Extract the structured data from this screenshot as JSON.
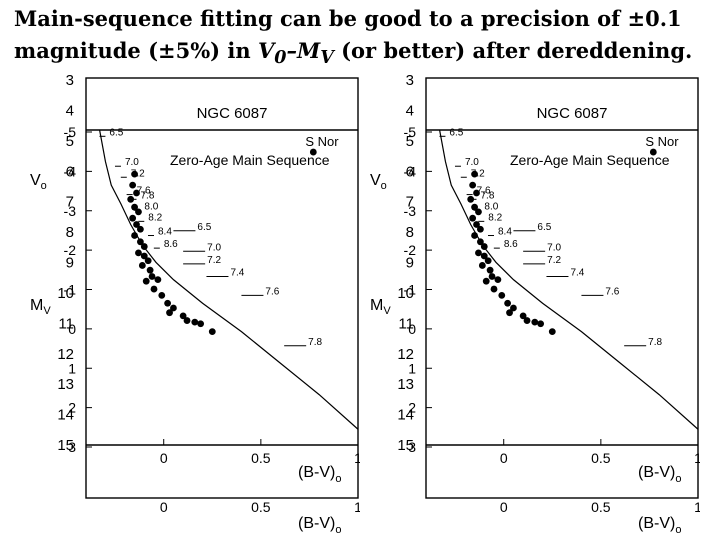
{
  "slide": {
    "title_line1": "Main-sequence fitting can be good to a precision of ±0.1",
    "title_line2_a": "magnitude (±5%) in ",
    "title_v": "V",
    "title_sub0": "0",
    "title_dash_m": "–M",
    "title_subv": "V",
    "title_line2_b": " (or better) after dereddening."
  },
  "chart_data": {
    "type": "scatter",
    "panels": [
      {
        "name": "left",
        "label": "NGC 6087",
        "curve_label": "Zero-Age Main Sequence",
        "star_label": "S Nor",
        "ylabel": "M",
        "ylabel_sub": "V",
        "ylabel2": "V",
        "ylabel2_sub": "o",
        "ylabel2_suffix": " – M",
        "ylabel2_sub2": "V",
        "xlabel": "(B-V)",
        "xlabel_sub": "o",
        "xlim": [
          -0.4,
          1.0
        ],
        "ylim": [
          -5,
          15
        ],
        "x_ticks": [
          "0",
          "0.5",
          "1"
        ],
        "y_ticks_left": [
          "3",
          "4",
          "5",
          "6",
          "7",
          "8",
          "9",
          "10",
          "11",
          "12",
          "13",
          "14",
          "15"
        ],
        "y_ticks_inner": [
          "-5",
          "-4",
          "-3",
          "-2",
          "-1",
          "0",
          "1",
          "2",
          "3"
        ],
        "mass_labels": [
          {
            "text": "6.5",
            "bv": -0.3,
            "mv": -4.6
          },
          {
            "text": "7.0",
            "bv": -0.22,
            "mv": -2.7
          },
          {
            "text": "7.2",
            "bv": -0.19,
            "mv": -2.0
          },
          {
            "text": "7.6",
            "bv": -0.16,
            "mv": -0.9
          },
          {
            "text": "7.8",
            "bv": -0.14,
            "mv": -0.6
          },
          {
            "text": "8.0",
            "bv": -0.12,
            "mv": 0.1
          },
          {
            "text": "8.2",
            "bv": -0.1,
            "mv": 0.8
          },
          {
            "text": "8.4",
            "bv": -0.05,
            "mv": 1.7
          },
          {
            "text": "8.6",
            "bv": -0.02,
            "mv": 2.5
          },
          {
            "text": "6.5",
            "bv": 0.05,
            "mv": 1.4
          },
          {
            "text": "7.0",
            "bv": 0.1,
            "mv": 2.7
          },
          {
            "text": "7.2",
            "bv": 0.1,
            "mv": 3.5
          },
          {
            "text": "7.4",
            "bv": 0.22,
            "mv": 4.3
          },
          {
            "text": "7.6",
            "bv": 0.4,
            "mv": 5.5
          },
          {
            "text": "7.8",
            "bv": 0.62,
            "mv": 8.7
          }
        ],
        "points": [
          {
            "bv": -0.15,
            "mv": -2.2
          },
          {
            "bv": -0.16,
            "mv": -1.5
          },
          {
            "bv": -0.14,
            "mv": -1.0
          },
          {
            "bv": -0.17,
            "mv": -0.6
          },
          {
            "bv": -0.15,
            "mv": -0.1
          },
          {
            "bv": -0.13,
            "mv": 0.2
          },
          {
            "bv": -0.16,
            "mv": 0.6
          },
          {
            "bv": -0.14,
            "mv": 1.0
          },
          {
            "bv": -0.12,
            "mv": 1.3
          },
          {
            "bv": -0.15,
            "mv": 1.7
          },
          {
            "bv": -0.12,
            "mv": 2.1
          },
          {
            "bv": -0.1,
            "mv": 2.4
          },
          {
            "bv": -0.13,
            "mv": 2.8
          },
          {
            "bv": -0.1,
            "mv": 3.0
          },
          {
            "bv": -0.08,
            "mv": 3.3
          },
          {
            "bv": -0.11,
            "mv": 3.6
          },
          {
            "bv": -0.07,
            "mv": 3.9
          },
          {
            "bv": -0.06,
            "mv": 4.3
          },
          {
            "bv": -0.03,
            "mv": 4.5
          },
          {
            "bv": -0.09,
            "mv": 4.6
          },
          {
            "bv": -0.05,
            "mv": 5.1
          },
          {
            "bv": -0.01,
            "mv": 5.5
          },
          {
            "bv": 0.02,
            "mv": 6.0
          },
          {
            "bv": 0.05,
            "mv": 6.3
          },
          {
            "bv": 0.03,
            "mv": 6.6
          },
          {
            "bv": 0.1,
            "mv": 6.8
          },
          {
            "bv": 0.12,
            "mv": 7.1
          },
          {
            "bv": 0.16,
            "mv": 7.2
          },
          {
            "bv": 0.19,
            "mv": 7.3
          },
          {
            "bv": 0.25,
            "mv": 7.8
          },
          {
            "bv": 0.77,
            "mv": -3.6
          }
        ]
      },
      {
        "name": "right",
        "label": "NGC 6087",
        "curve_label": "Zero-Age Main Sequence",
        "star_label": "S Nor",
        "ylabel": "M",
        "ylabel_sub": "V",
        "ylabel2": "V",
        "ylabel2_sub": "o",
        "ylabel2_suffix": " – M",
        "ylabel2_sub2": "V",
        "xlabel": "(B-V)",
        "xlabel_sub": "o",
        "xlim": [
          -0.4,
          1.0
        ],
        "ylim": [
          -5,
          15
        ],
        "x_ticks": [
          "0",
          "0.5",
          "1"
        ],
        "y_ticks_left": [
          "3",
          "4",
          "5",
          "6",
          "7",
          "8",
          "9",
          "10",
          "11",
          "12",
          "13",
          "14",
          "15"
        ],
        "y_ticks_inner": [
          "-5",
          "-4",
          "-3",
          "-2",
          "-1",
          "0",
          "1",
          "2",
          "3"
        ],
        "mass_labels": [
          {
            "text": "6.5",
            "bv": -0.3,
            "mv": -4.6
          },
          {
            "text": "7.0",
            "bv": -0.22,
            "mv": -2.7
          },
          {
            "text": "7.2",
            "bv": -0.19,
            "mv": -2.0
          },
          {
            "text": "7.6",
            "bv": -0.16,
            "mv": -0.9
          },
          {
            "text": "7.8",
            "bv": -0.14,
            "mv": -0.6
          },
          {
            "text": "8.0",
            "bv": -0.12,
            "mv": 0.1
          },
          {
            "text": "8.2",
            "bv": -0.1,
            "mv": 0.8
          },
          {
            "text": "8.4",
            "bv": -0.05,
            "mv": 1.7
          },
          {
            "text": "8.6",
            "bv": -0.02,
            "mv": 2.5
          },
          {
            "text": "6.5",
            "bv": 0.05,
            "mv": 1.4
          },
          {
            "text": "7.0",
            "bv": 0.1,
            "mv": 2.7
          },
          {
            "text": "7.2",
            "bv": 0.1,
            "mv": 3.5
          },
          {
            "text": "7.4",
            "bv": 0.22,
            "mv": 4.3
          },
          {
            "text": "7.6",
            "bv": 0.4,
            "mv": 5.5
          },
          {
            "text": "7.8",
            "bv": 0.62,
            "mv": 8.7
          }
        ],
        "points": [
          {
            "bv": -0.15,
            "mv": -2.2
          },
          {
            "bv": -0.16,
            "mv": -1.5
          },
          {
            "bv": -0.14,
            "mv": -1.0
          },
          {
            "bv": -0.17,
            "mv": -0.6
          },
          {
            "bv": -0.15,
            "mv": -0.1
          },
          {
            "bv": -0.13,
            "mv": 0.2
          },
          {
            "bv": -0.16,
            "mv": 0.6
          },
          {
            "bv": -0.14,
            "mv": 1.0
          },
          {
            "bv": -0.12,
            "mv": 1.3
          },
          {
            "bv": -0.15,
            "mv": 1.7
          },
          {
            "bv": -0.12,
            "mv": 2.1
          },
          {
            "bv": -0.1,
            "mv": 2.4
          },
          {
            "bv": -0.13,
            "mv": 2.8
          },
          {
            "bv": -0.1,
            "mv": 3.0
          },
          {
            "bv": -0.08,
            "mv": 3.3
          },
          {
            "bv": -0.11,
            "mv": 3.6
          },
          {
            "bv": -0.07,
            "mv": 3.9
          },
          {
            "bv": -0.06,
            "mv": 4.3
          },
          {
            "bv": -0.03,
            "mv": 4.5
          },
          {
            "bv": -0.09,
            "mv": 4.6
          },
          {
            "bv": -0.05,
            "mv": 5.1
          },
          {
            "bv": -0.01,
            "mv": 5.5
          },
          {
            "bv": 0.02,
            "mv": 6.0
          },
          {
            "bv": 0.05,
            "mv": 6.3
          },
          {
            "bv": 0.03,
            "mv": 6.6
          },
          {
            "bv": 0.1,
            "mv": 6.8
          },
          {
            "bv": 0.12,
            "mv": 7.1
          },
          {
            "bv": 0.16,
            "mv": 7.2
          },
          {
            "bv": 0.19,
            "mv": 7.3
          },
          {
            "bv": 0.25,
            "mv": 7.8
          },
          {
            "bv": 0.77,
            "mv": -3.6
          }
        ],
        "star_bv": 0.77,
        "star_mv": -3.6
      }
    ],
    "zams": [
      {
        "bv": -0.33,
        "mv": -5.0
      },
      {
        "bv": -0.3,
        "mv": -3.0
      },
      {
        "bv": -0.27,
        "mv": -1.5
      },
      {
        "bv": -0.22,
        "mv": -0.3
      },
      {
        "bv": -0.17,
        "mv": 1.0
      },
      {
        "bv": -0.11,
        "mv": 2.3
      },
      {
        "bv": -0.04,
        "mv": 3.4
      },
      {
        "bv": 0.05,
        "mv": 4.5
      },
      {
        "bv": 0.2,
        "mv": 6.0
      },
      {
        "bv": 0.4,
        "mv": 7.8
      },
      {
        "bv": 0.6,
        "mv": 9.8
      },
      {
        "bv": 0.8,
        "mv": 11.8
      },
      {
        "bv": 1.0,
        "mv": 14.0
      }
    ]
  }
}
